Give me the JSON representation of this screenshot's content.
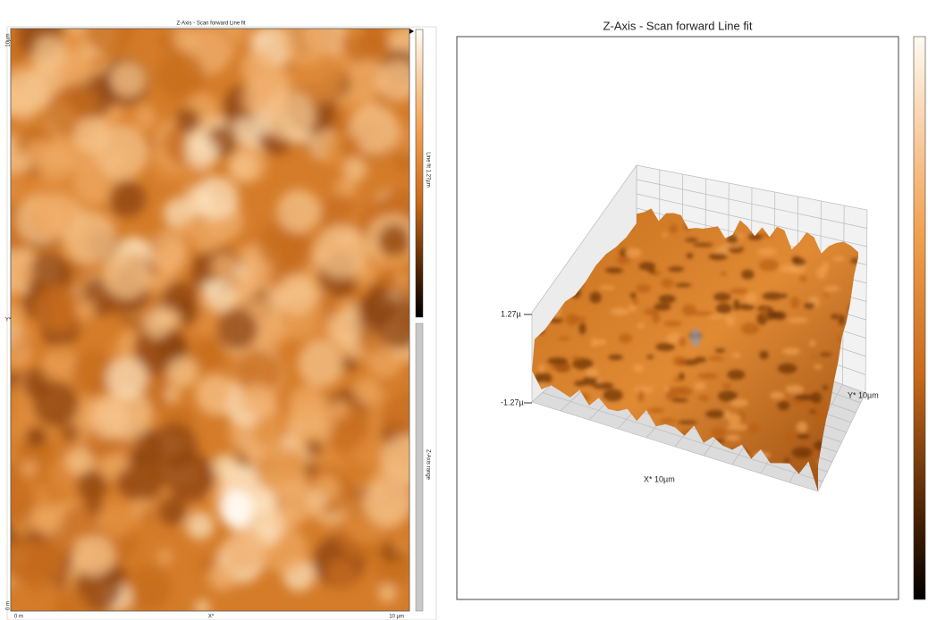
{
  "left_panel": {
    "title": "Z-Axis - Scan forward   Line fit",
    "y_axis": {
      "top": "10µm",
      "middle": "Y*",
      "bottom": "0 m"
    },
    "x_axis": {
      "left": "0 m",
      "middle": "X*",
      "right": "10 µm"
    },
    "colorbar_label": "Line fit 1.27µm",
    "range_label": "Z-Axis range"
  },
  "right_panel": {
    "title": "Z-Axis - Scan forward   Line fit",
    "z_max": "1.27µ",
    "z_min": "-1.27µ",
    "y_label": "Y* 10µm",
    "x_label": "X* 10µm"
  }
}
